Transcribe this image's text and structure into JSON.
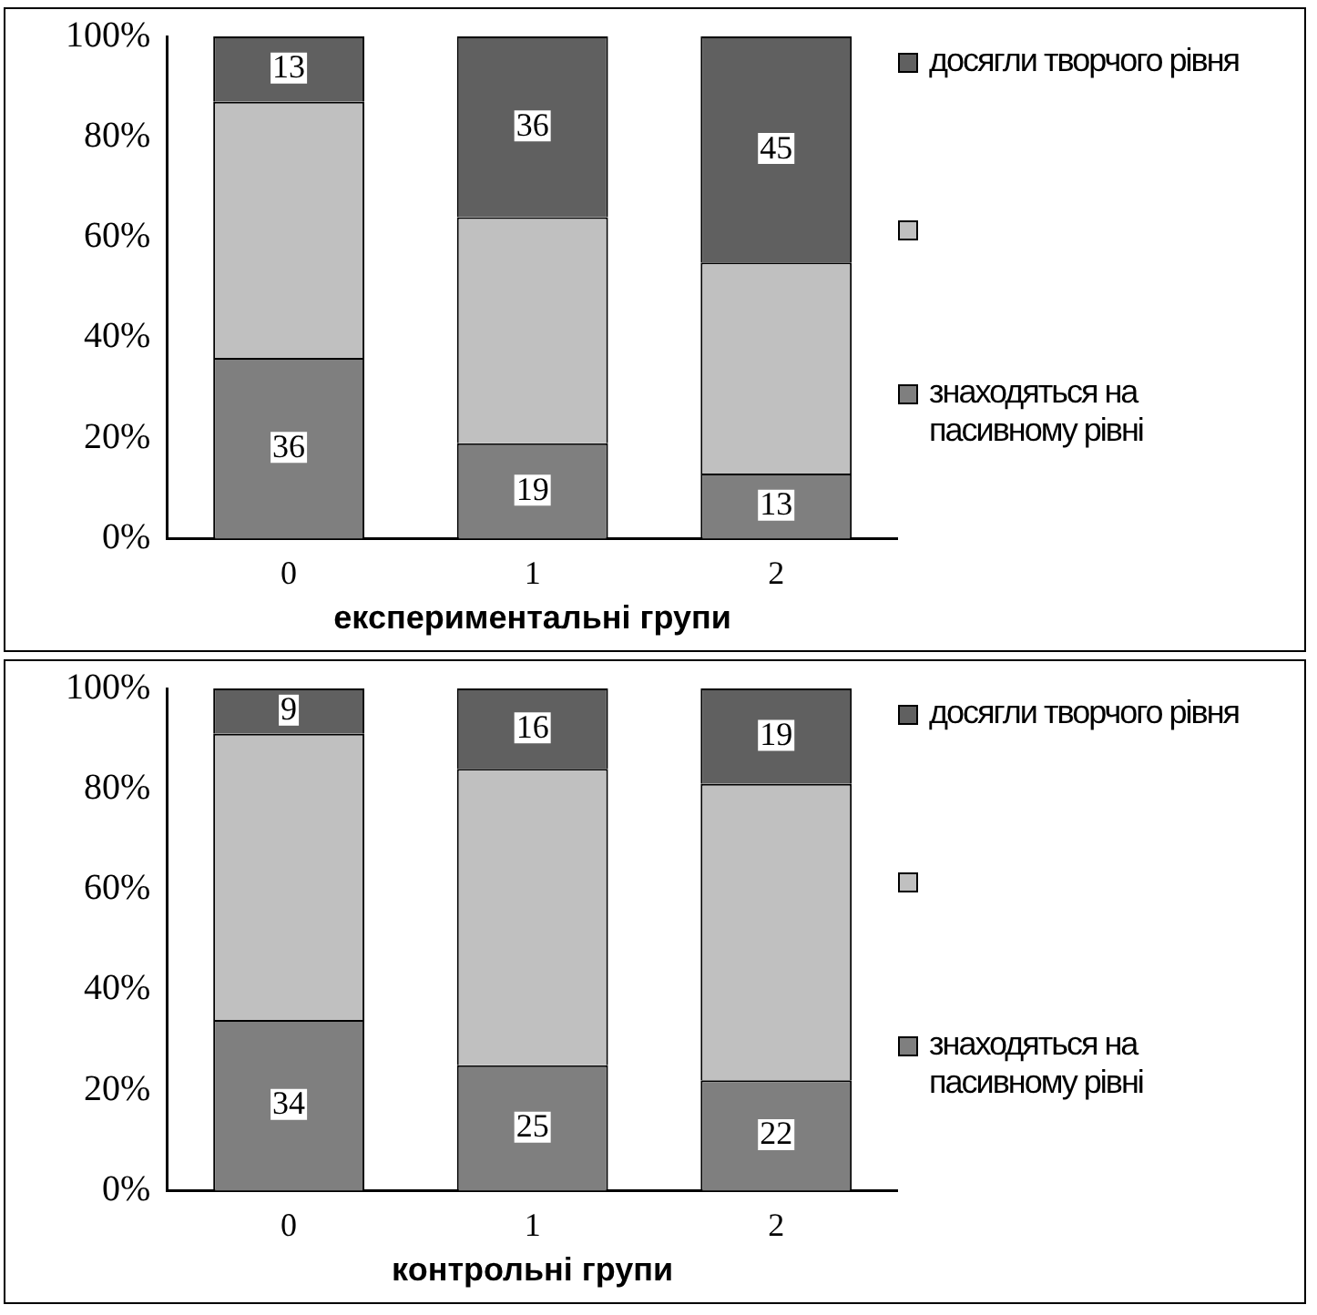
{
  "chart_data": [
    {
      "type": "bar",
      "stacked": true,
      "xlabel": "експериментальні групи",
      "categories": [
        "0",
        "1",
        "2"
      ],
      "ylim": [
        0,
        100
      ],
      "yticks": [
        {
          "value": 0,
          "label": "0%"
        },
        {
          "value": 20,
          "label": "20%"
        },
        {
          "value": 40,
          "label": "40%"
        },
        {
          "value": 60,
          "label": "60%"
        },
        {
          "value": 80,
          "label": "80%"
        },
        {
          "value": 100,
          "label": "100%"
        }
      ],
      "grid": false,
      "legend": "right",
      "series": [
        {
          "name": "знаходяться на пасивному рівні",
          "color": "#7f7f7f",
          "values": [
            36,
            19,
            13
          ],
          "value_labels": [
            "36",
            "19",
            "13"
          ]
        },
        {
          "color": "#c0c0c0",
          "values": [
            51,
            45,
            42
          ],
          "value_labels": [
            null,
            null,
            null
          ]
        },
        {
          "name": "досягли творчого рівня",
          "color": "#606060",
          "values": [
            13,
            36,
            45
          ],
          "value_labels": [
            "13",
            "36",
            "45"
          ]
        }
      ]
    },
    {
      "type": "bar",
      "stacked": true,
      "xlabel": "контрольні групи",
      "categories": [
        "0",
        "1",
        "2"
      ],
      "ylim": [
        0,
        100
      ],
      "yticks": [
        {
          "value": 0,
          "label": "0%"
        },
        {
          "value": 20,
          "label": "20%"
        },
        {
          "value": 40,
          "label": "40%"
        },
        {
          "value": 60,
          "label": "60%"
        },
        {
          "value": 80,
          "label": "80%"
        },
        {
          "value": 100,
          "label": "100%"
        }
      ],
      "grid": false,
      "legend": "right",
      "series": [
        {
          "name": "знаходяться на пасивному рівні",
          "color": "#7f7f7f",
          "values": [
            34,
            25,
            22
          ],
          "value_labels": [
            "34",
            "25",
            "22"
          ]
        },
        {
          "color": "#c0c0c0",
          "values": [
            57,
            59,
            59
          ],
          "value_labels": [
            null,
            null,
            null
          ]
        },
        {
          "name": "досягли творчого рівня",
          "color": "#606060",
          "values": [
            9,
            16,
            19
          ],
          "value_labels": [
            "9",
            "16",
            "19"
          ]
        }
      ]
    }
  ]
}
